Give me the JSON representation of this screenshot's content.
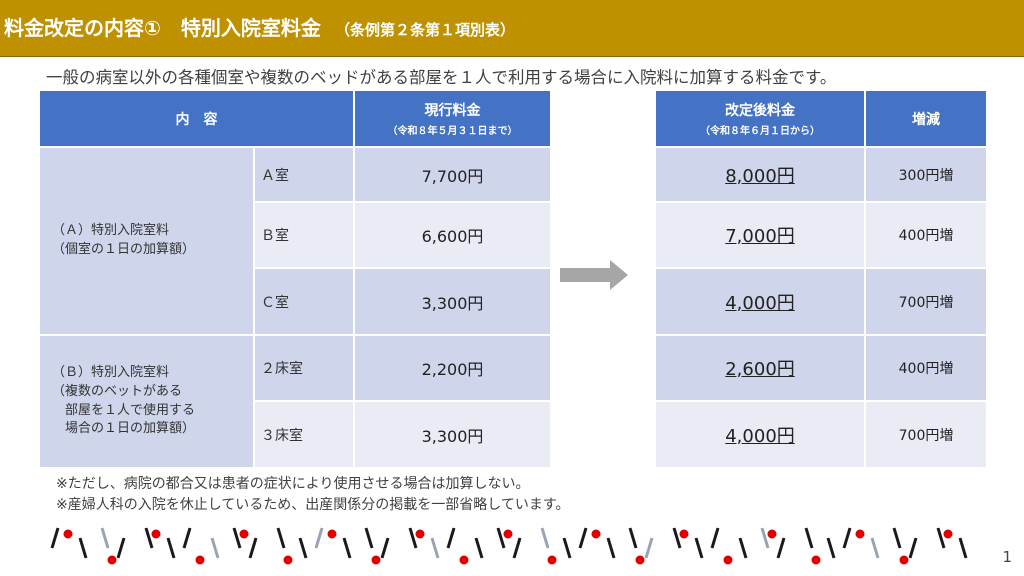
{
  "header": {
    "title": "料金改定の内容①　特別入院室料金",
    "subtitle": "（条例第２条第１項別表）"
  },
  "description": "一般の病室以外の各種個室や複数のベッドがある部屋を１人で利用する場合に入院料に加算する料金です。",
  "current_table": {
    "col_content": "内　容",
    "col_current": "現行料金",
    "col_current_note": "（令和８年５月３１日まで）",
    "cat_a": "（Ａ）特別入院室料\n（個室の１日の加算額）",
    "cat_b": "（Ｂ）特別入院室料\n（複数のベットがある\n　部屋を１人で使用する\n　場合の１日の加算額）",
    "rows": [
      {
        "room": "Ａ室",
        "price": "7,700円"
      },
      {
        "room": "Ｂ室",
        "price": "6,600円"
      },
      {
        "room": "Ｃ室",
        "price": "3,300円"
      },
      {
        "room": "２床室",
        "price": "2,200円"
      },
      {
        "room": "３床室",
        "price": "3,300円"
      }
    ]
  },
  "new_table": {
    "col_new": "改定後料金",
    "col_new_note": "（令和８年６月１日から）",
    "col_diff": "増減",
    "rows": [
      {
        "price": "8,000円",
        "diff": "300円増"
      },
      {
        "price": "7,000円",
        "diff": "400円増"
      },
      {
        "price": "4,000円",
        "diff": "700円増"
      },
      {
        "price": "2,600円",
        "diff": "400円増"
      },
      {
        "price": "4,000円",
        "diff": "700円増"
      }
    ]
  },
  "notes": [
    "※ただし、病院の都合又は患者の症状により使用させる場合は加算しない。",
    "※産婦人科の入院を休止しているため、出産関係分の掲載を一部省略しています。"
  ],
  "page_number": "1",
  "colors": {
    "title_bar": "#bf9000",
    "header_cell": "#4472c4",
    "row_dark": "#cfd5ea",
    "row_light": "#e9ebf5",
    "arrow": "#a6a6a6",
    "deco_red": "#e00000",
    "deco_dark": "#1a1a1a"
  }
}
